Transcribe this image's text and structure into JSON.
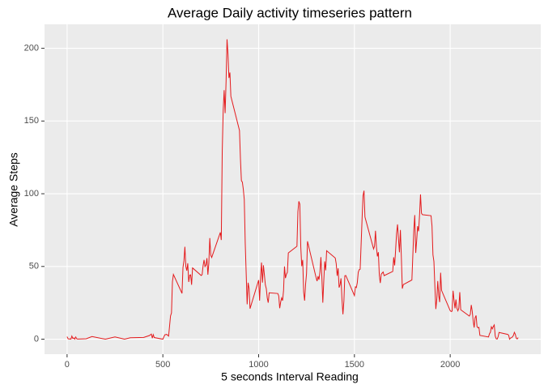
{
  "chart_data": {
    "type": "line",
    "title": "Average Daily activity timeseries pattern",
    "x_label": "5 seconds Interval Reading",
    "y_label": "Average Steps",
    "x": [
      0,
      5,
      10,
      15,
      20,
      25,
      30,
      35,
      40,
      45,
      50,
      55,
      100,
      130,
      200,
      250,
      300,
      330,
      400,
      430,
      440,
      445,
      450,
      455,
      500,
      510,
      520,
      530,
      540,
      545,
      550,
      555,
      600,
      605,
      610,
      615,
      620,
      625,
      630,
      635,
      640,
      645,
      650,
      655,
      700,
      705,
      710,
      715,
      720,
      725,
      730,
      735,
      740,
      745,
      750,
      755,
      800,
      805,
      810,
      815,
      820,
      825,
      830,
      835,
      840,
      845,
      850,
      855,
      900,
      905,
      910,
      915,
      920,
      925,
      930,
      935,
      940,
      945,
      950,
      955,
      1000,
      1005,
      1010,
      1015,
      1020,
      1025,
      1030,
      1035,
      1040,
      1045,
      1050,
      1055,
      1100,
      1105,
      1110,
      1115,
      1120,
      1125,
      1130,
      1135,
      1140,
      1145,
      1150,
      1155,
      1200,
      1205,
      1210,
      1215,
      1220,
      1225,
      1230,
      1235,
      1240,
      1245,
      1250,
      1255,
      1300,
      1305,
      1310,
      1315,
      1320,
      1325,
      1330,
      1335,
      1340,
      1345,
      1350,
      1355,
      1400,
      1405,
      1410,
      1415,
      1420,
      1425,
      1430,
      1435,
      1440,
      1445,
      1450,
      1455,
      1500,
      1505,
      1510,
      1515,
      1520,
      1525,
      1530,
      1535,
      1540,
      1545,
      1550,
      1555,
      1600,
      1605,
      1610,
      1615,
      1620,
      1625,
      1630,
      1635,
      1640,
      1645,
      1650,
      1655,
      1700,
      1705,
      1710,
      1715,
      1720,
      1725,
      1730,
      1735,
      1740,
      1745,
      1750,
      1755,
      1800,
      1805,
      1810,
      1815,
      1820,
      1825,
      1830,
      1835,
      1840,
      1845,
      1850,
      1855,
      1900,
      1905,
      1910,
      1915,
      1920,
      1925,
      1930,
      1935,
      1940,
      1945,
      1950,
      1955,
      2000,
      2005,
      2010,
      2015,
      2020,
      2025,
      2030,
      2035,
      2040,
      2045,
      2050,
      2055,
      2100,
      2105,
      2110,
      2115,
      2120,
      2125,
      2130,
      2135,
      2140,
      2145,
      2150,
      2155,
      2200,
      2205,
      2210,
      2215,
      2220,
      2225,
      2230,
      2235,
      2240,
      2245,
      2250,
      2255,
      2300,
      2305,
      2310,
      2315,
      2320,
      2325,
      2330,
      2335,
      2340,
      2345,
      2350,
      2355
    ],
    "series": [
      {
        "name": "Average Steps",
        "color": "#e41a1c",
        "values": [
          1.7,
          0.3,
          0.1,
          0.2,
          0,
          2.1,
          0.5,
          0.9,
          0,
          1.5,
          0.3,
          0.1,
          0.3,
          1.8,
          0,
          1.5,
          0,
          1.0,
          1.2,
          2.5,
          3.5,
          0.7,
          3.1,
          1.1,
          0,
          3.0,
          3.3,
          2.1,
          16,
          18,
          39.5,
          44.5,
          31.5,
          49.3,
          53.8,
          63.5,
          49.9,
          47.1,
          52.2,
          39.3,
          44,
          44.2,
          37.4,
          49,
          43.8,
          44.4,
          50.5,
          54.5,
          49.9,
          51,
          55.7,
          44.3,
          52.3,
          69.5,
          57.8,
          56.2,
          73.4,
          68.2,
          129.4,
          157.5,
          171.2,
          155.4,
          177.3,
          206.2,
          195.9,
          179.6,
          183.4,
          167,
          143.5,
          124,
          109,
          108,
          103,
          96,
          66,
          45,
          24,
          38.8,
          34.9,
          21,
          40.6,
          26.5,
          42.4,
          52.7,
          38.9,
          50.8,
          44.3,
          37.4,
          34.7,
          28.3,
          25.1,
          31.9,
          31.4,
          29.7,
          21.3,
          25.5,
          28.4,
          26.5,
          33.4,
          50,
          42,
          44.6,
          46,
          59.3,
          63.9,
          87.7,
          94.8,
          92.8,
          63.4,
          50.2,
          54.5,
          32.4,
          26.5,
          37.7,
          45,
          67.3,
          42.3,
          39.9,
          43.3,
          40.9,
          46.2,
          56.4,
          42.8,
          25.1,
          39.9,
          53.5,
          47.3,
          60.8,
          55.8,
          51.9,
          43.6,
          48.7,
          35.5,
          37.5,
          41.8,
          27.5,
          17.1,
          26.1,
          43.6,
          43.8,
          30,
          36,
          35.5,
          38.8,
          46,
          47.8,
          48.1,
          65.3,
          82.9,
          98.7,
          102.1,
          84,
          62.1,
          64.1,
          74.5,
          63.2,
          56.9,
          59.8,
          43.9,
          38.6,
          44.7,
          45.5,
          46.2,
          43.7,
          46.6,
          56.3,
          50.7,
          61.2,
          72.7,
          78.9,
          68.9,
          59.7,
          75.1,
          56.5,
          34.8,
          37.5,
          40.7,
          58,
          74.7,
          85.3,
          59.3,
          67.8,
          77.7,
          74.2,
          85.3,
          99.5,
          86.6,
          85.6,
          84.9,
          77.8,
          58,
          53.4,
          36.3,
          20.7,
          27.4,
          40,
          30.2,
          25.5,
          45.7,
          33.5,
          19.6,
          19,
          19.3,
          33.3,
          26.8,
          21.2,
          27.3,
          21.3,
          19.5,
          21.3,
          32.3,
          20.2,
          15.9,
          17.2,
          23.5,
          19.2,
          12.5,
          8,
          14.7,
          16.3,
          8.7,
          7.8,
          8.1,
          2.6,
          1.5,
          3.7,
          4.8,
          8.5,
          7.1,
          8.7,
          9.8,
          2.2,
          0.3,
          0.1,
          1.6,
          4.6,
          3.3,
          2.8,
          0,
          0.8,
          1,
          1.6,
          2.6,
          4.7,
          3.3,
          0.6,
          0.2,
          1.1
        ]
      }
    ],
    "xlim": [
      -117.75,
      2472.75
    ],
    "xticks": [
      0,
      500,
      1000,
      1500,
      2000
    ],
    "ylim": [
      -10.3,
      216.5
    ],
    "yticks": [
      0,
      50,
      100,
      150,
      200
    ],
    "grid": true
  }
}
